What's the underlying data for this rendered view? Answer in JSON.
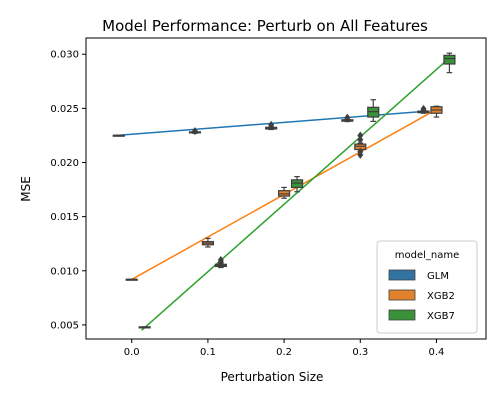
{
  "chart_data": {
    "type": "box",
    "title": "Model Performance: Perturb on All Features",
    "xlabel": "Perturbation Size",
    "ylabel": "MSE",
    "xlim": [
      -0.06,
      0.465
    ],
    "ylim": [
      0.0037,
      0.0315
    ],
    "x_ticks": [
      "0.0",
      "0.1",
      "0.2",
      "0.3",
      "0.4"
    ],
    "x_tick_values": [
      0.0,
      0.1,
      0.2,
      0.3,
      0.4
    ],
    "y_ticks": [
      "0.005",
      "0.010",
      "0.015",
      "0.020",
      "0.025",
      "0.030"
    ],
    "y_tick_values": [
      0.005,
      0.01,
      0.015,
      0.02,
      0.025,
      0.03
    ],
    "grid": false,
    "legend": {
      "title": "model_name",
      "position": "lower-right"
    },
    "series": [
      {
        "name": "GLM",
        "color": "#1f77b4",
        "box_color": "#3274a1",
        "line_x": [
          -0.02,
          0.38
        ],
        "line_y": [
          0.0225,
          0.0247
        ],
        "boxes": [
          {
            "x": -0.017,
            "q1": 0.02248,
            "median": 0.0225,
            "q3": 0.02252,
            "low": 0.02248,
            "high": 0.02252,
            "outliers": []
          },
          {
            "x": 0.083,
            "q1": 0.02275,
            "median": 0.0228,
            "q3": 0.02283,
            "low": 0.0227,
            "high": 0.02285,
            "outliers": [
              0.0229
            ]
          },
          {
            "x": 0.183,
            "q1": 0.0231,
            "median": 0.02318,
            "q3": 0.02325,
            "low": 0.02305,
            "high": 0.0233,
            "outliers": [
              0.02348
            ]
          },
          {
            "x": 0.283,
            "q1": 0.02382,
            "median": 0.02388,
            "q3": 0.02395,
            "low": 0.02378,
            "high": 0.024,
            "outliers": [
              0.02415
            ]
          },
          {
            "x": 0.383,
            "q1": 0.0246,
            "median": 0.02468,
            "q3": 0.02475,
            "low": 0.02455,
            "high": 0.0248,
            "outliers": [
              0.02495
            ]
          }
        ]
      },
      {
        "name": "XGB2",
        "color": "#ff7f0e",
        "box_color": "#e1812c",
        "line_x": [
          0.0,
          0.4
        ],
        "line_y": [
          0.0092,
          0.0249
        ],
        "boxes": [
          {
            "x": 0.0,
            "q1": 0.00918,
            "median": 0.0092,
            "q3": 0.00922,
            "low": 0.00918,
            "high": 0.00922,
            "outliers": []
          },
          {
            "x": 0.1,
            "q1": 0.0124,
            "median": 0.01255,
            "q3": 0.0127,
            "low": 0.0122,
            "high": 0.013,
            "outliers": []
          },
          {
            "x": 0.2,
            "q1": 0.0169,
            "median": 0.0171,
            "q3": 0.0174,
            "low": 0.0167,
            "high": 0.0177,
            "outliers": []
          },
          {
            "x": 0.3,
            "q1": 0.0212,
            "median": 0.0215,
            "q3": 0.0217,
            "low": 0.0212,
            "high": 0.0218,
            "outliers": [
              0.0207,
              0.021,
              0.0221,
              0.0225
            ]
          },
          {
            "x": 0.4,
            "q1": 0.02455,
            "median": 0.02485,
            "q3": 0.02515,
            "low": 0.0242,
            "high": 0.0252,
            "outliers": []
          }
        ]
      },
      {
        "name": "XGB7",
        "color": "#2ca02c",
        "box_color": "#3a923a",
        "line_x": [
          0.013,
          0.413
        ],
        "line_y": [
          0.0045,
          0.0294
        ],
        "boxes": [
          {
            "x": 0.017,
            "q1": 0.00478,
            "median": 0.0048,
            "q3": 0.00482,
            "low": 0.00478,
            "high": 0.00482,
            "outliers": []
          },
          {
            "x": 0.117,
            "q1": 0.0104,
            "median": 0.0105,
            "q3": 0.0106,
            "low": 0.0103,
            "high": 0.0107,
            "outliers": [
              0.0108,
              0.011
            ]
          },
          {
            "x": 0.217,
            "q1": 0.0177,
            "median": 0.0181,
            "q3": 0.0184,
            "low": 0.0173,
            "high": 0.0187,
            "outliers": []
          },
          {
            "x": 0.317,
            "q1": 0.0242,
            "median": 0.0247,
            "q3": 0.0251,
            "low": 0.0238,
            "high": 0.0258,
            "outliers": []
          },
          {
            "x": 0.417,
            "q1": 0.0291,
            "median": 0.0296,
            "q3": 0.0299,
            "low": 0.0283,
            "high": 0.0301,
            "outliers": []
          }
        ]
      }
    ]
  }
}
